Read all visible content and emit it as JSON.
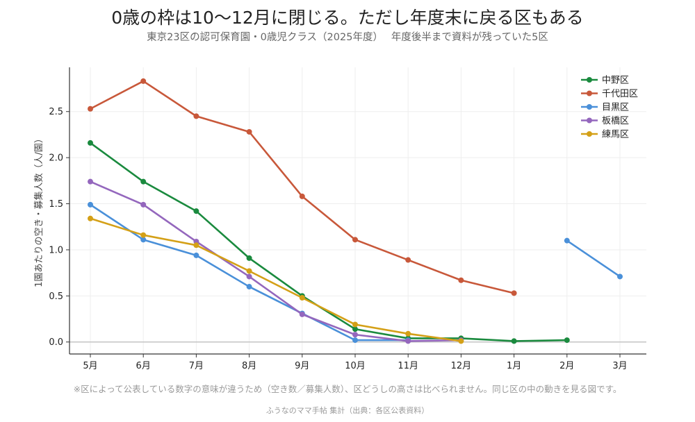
{
  "title": "0歳の枠は10〜12月に閉じる。ただし年度末に戻る区もある",
  "subtitle": "東京23区の認可保育園・0歳児クラス（2025年度）　 年度後半まで資料が残っていた5区",
  "note": "※区によって公表している数字の意味が違うため（空き数／募集人数）、区どうしの高さは比べられません。同じ区の中の動きを見る図です。",
  "credit": "ふうなのママ手帖 集計（出典：各区公表資料）",
  "chart_data": {
    "type": "line",
    "ylabel": "1園あたりの空き・募集人数（人/園）",
    "xlabel": "",
    "categories": [
      "5月",
      "6月",
      "7月",
      "8月",
      "9月",
      "10月",
      "11月",
      "12月",
      "1月",
      "2月",
      "3月"
    ],
    "ylim": [
      -0.13,
      2.98
    ],
    "yticks": [
      0.0,
      0.5,
      1.0,
      1.5,
      2.0,
      2.5
    ],
    "ytick_labels": [
      "0.0",
      "0.5",
      "1.0",
      "1.5",
      "2.0",
      "2.5"
    ],
    "grid": true,
    "legend_position": "top-right",
    "series": [
      {
        "name": "中野区",
        "color": "#1a8a3e",
        "values": [
          2.16,
          1.74,
          1.42,
          0.91,
          0.5,
          0.14,
          0.04,
          0.04,
          0.01,
          0.02,
          null
        ]
      },
      {
        "name": "千代田区",
        "color": "#c8583a",
        "values": [
          2.53,
          2.83,
          2.45,
          2.28,
          1.58,
          1.11,
          0.89,
          0.67,
          0.53,
          null,
          null
        ]
      },
      {
        "name": "目黒区",
        "color": "#4a90d9",
        "values": [
          1.49,
          1.11,
          0.94,
          0.6,
          0.31,
          0.02,
          0.02,
          null,
          null,
          1.1,
          0.71
        ]
      },
      {
        "name": "板橋区",
        "color": "#9467bd",
        "values": [
          1.74,
          1.49,
          1.09,
          0.71,
          0.3,
          0.08,
          0.01,
          0.02,
          null,
          null,
          null
        ]
      },
      {
        "name": "練馬区",
        "color": "#d4a017",
        "values": [
          1.34,
          1.16,
          1.05,
          0.77,
          0.48,
          0.19,
          0.09,
          0.01,
          null,
          null,
          null
        ]
      }
    ]
  }
}
